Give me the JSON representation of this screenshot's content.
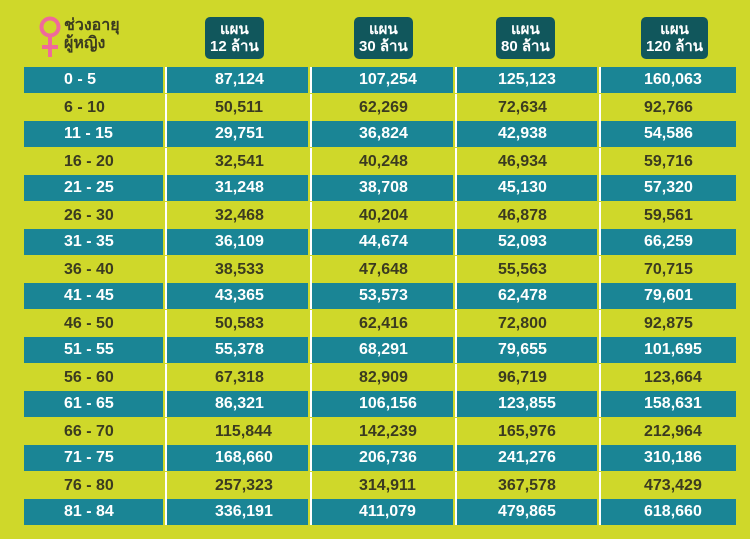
{
  "header": {
    "age_label_line1": "ช่วงอายุ",
    "age_label_line2": "ผู้หญิง",
    "icon": "female-symbol-icon",
    "plans": [
      {
        "line1": "แผน",
        "line2": "12 ล้าน"
      },
      {
        "line1": "แผน",
        "line2": "30 ล้าน"
      },
      {
        "line1": "แผน",
        "line2": "80 ล้าน"
      },
      {
        "line1": "แผน",
        "line2": "120 ล้าน"
      }
    ]
  },
  "colors": {
    "background": "#cfd82a",
    "teal_row": "#1a8595",
    "header_box": "#11575c",
    "female_icon": "#f06a9a"
  },
  "rows": [
    {
      "age": "0 - 5",
      "values": [
        "87,124",
        "107,254",
        "125,123",
        "160,063"
      ]
    },
    {
      "age": "6 - 10",
      "values": [
        "50,511",
        "62,269",
        "72,634",
        "92,766"
      ]
    },
    {
      "age": "11 - 15",
      "values": [
        "29,751",
        "36,824",
        "42,938",
        "54,586"
      ]
    },
    {
      "age": "16 - 20",
      "values": [
        "32,541",
        "40,248",
        "46,934",
        "59,716"
      ]
    },
    {
      "age": "21 - 25",
      "values": [
        "31,248",
        "38,708",
        "45,130",
        "57,320"
      ]
    },
    {
      "age": "26 - 30",
      "values": [
        "32,468",
        "40,204",
        "46,878",
        "59,561"
      ]
    },
    {
      "age": "31 - 35",
      "values": [
        "36,109",
        "44,674",
        "52,093",
        "66,259"
      ]
    },
    {
      "age": "36 - 40",
      "values": [
        "38,533",
        "47,648",
        "55,563",
        "70,715"
      ]
    },
    {
      "age": "41 - 45",
      "values": [
        "43,365",
        "53,573",
        "62,478",
        "79,601"
      ]
    },
    {
      "age": "46 - 50",
      "values": [
        "50,583",
        "62,416",
        "72,800",
        "92,875"
      ]
    },
    {
      "age": "51 - 55",
      "values": [
        "55,378",
        "68,291",
        "79,655",
        "101,695"
      ]
    },
    {
      "age": "56 - 60",
      "values": [
        "67,318",
        "82,909",
        "96,719",
        "123,664"
      ]
    },
    {
      "age": "61 - 65",
      "values": [
        "86,321",
        "106,156",
        "123,855",
        "158,631"
      ]
    },
    {
      "age": "66 - 70",
      "values": [
        "115,844",
        "142,239",
        "165,976",
        "212,964"
      ]
    },
    {
      "age": "71 - 75",
      "values": [
        "168,660",
        "206,736",
        "241,276",
        "310,186"
      ]
    },
    {
      "age": "76 - 80",
      "values": [
        "257,323",
        "314,911",
        "367,578",
        "473,429"
      ]
    },
    {
      "age": "81 - 84",
      "values": [
        "336,191",
        "411,079",
        "479,865",
        "618,660"
      ]
    }
  ]
}
